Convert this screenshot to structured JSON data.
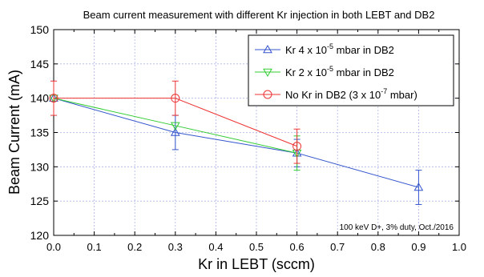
{
  "chart_data": {
    "type": "line",
    "title": "Beam current measurement with different Kr injection in both LEBT and DB2",
    "xlabel": "Kr in LEBT (sccm)",
    "ylabel": "Beam Current (mA)",
    "xlim": [
      0.0,
      1.0
    ],
    "ylim": [
      120,
      150
    ],
    "xticks": [
      "0.0",
      "0.1",
      "0.2",
      "0.3",
      "0.4",
      "0.5",
      "0.6",
      "0.7",
      "0.8",
      "0.9",
      "1.0"
    ],
    "yticks": [
      "120",
      "125",
      "130",
      "135",
      "140",
      "145",
      "150"
    ],
    "grid": true,
    "legend_position": "top-right",
    "annotation": "100 keV D+, 3% duty, Oct./2016",
    "series": [
      {
        "name_parts": [
          "Kr 4 x 10",
          "-5",
          " mbar in DB2"
        ],
        "color": "#3355cc",
        "marker": "triangle-up",
        "x": [
          0.0,
          0.3,
          0.6,
          0.9
        ],
        "y": [
          140,
          135,
          132,
          127
        ],
        "err": [
          0,
          2.5,
          2.0,
          2.5
        ]
      },
      {
        "name_parts": [
          "Kr 2 x 10",
          "-5",
          " mbar in DB2"
        ],
        "color": "#33cc33",
        "marker": "triangle-down",
        "x": [
          0.0,
          0.3,
          0.6
        ],
        "y": [
          140,
          136,
          132
        ],
        "err": [
          0,
          0,
          2.5
        ]
      },
      {
        "name_parts": [
          "No Kr in DB2 (3 x 10",
          "-7",
          " mbar)"
        ],
        "color": "#ee3333",
        "marker": "circle",
        "x": [
          0.0,
          0.3,
          0.6
        ],
        "y": [
          140,
          140,
          133
        ],
        "err": [
          2.5,
          2.5,
          2.5
        ]
      }
    ]
  }
}
